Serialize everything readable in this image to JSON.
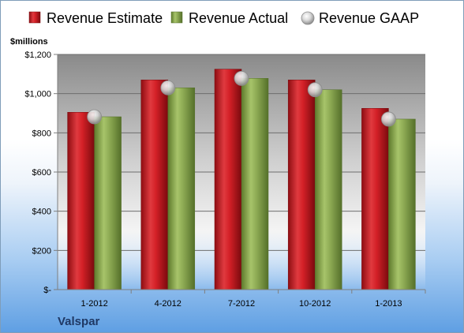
{
  "chart_data": {
    "type": "bar",
    "title": "",
    "company": "Valspar",
    "unit_label": "$millions",
    "categories": [
      "1-2012",
      "4-2012",
      "7-2012",
      "10-2012",
      "1-2013"
    ],
    "series": [
      {
        "name": "Revenue Estimate",
        "kind": "bar",
        "values": [
          905,
          1070,
          1125,
          1070,
          925
        ],
        "color": "#d42027"
      },
      {
        "name": "Revenue Actual",
        "kind": "bar",
        "values": [
          882,
          1030,
          1078,
          1020,
          870
        ],
        "color": "#8fac55"
      },
      {
        "name": "Revenue GAAP",
        "kind": "marker",
        "values": [
          882,
          1030,
          1078,
          1020,
          870
        ],
        "color": "#bfbfbf"
      }
    ],
    "y_ticks": [
      {
        "value": 0,
        "label": "$-"
      },
      {
        "value": 200,
        "label": "$200"
      },
      {
        "value": 400,
        "label": "$400"
      },
      {
        "value": 600,
        "label": "$600"
      },
      {
        "value": 800,
        "label": "$800"
      },
      {
        "value": 1000,
        "label": "$1,000"
      },
      {
        "value": 1200,
        "label": "$1,200"
      }
    ],
    "ylim": [
      0,
      1200
    ],
    "grid": true,
    "legend_position": "top"
  }
}
